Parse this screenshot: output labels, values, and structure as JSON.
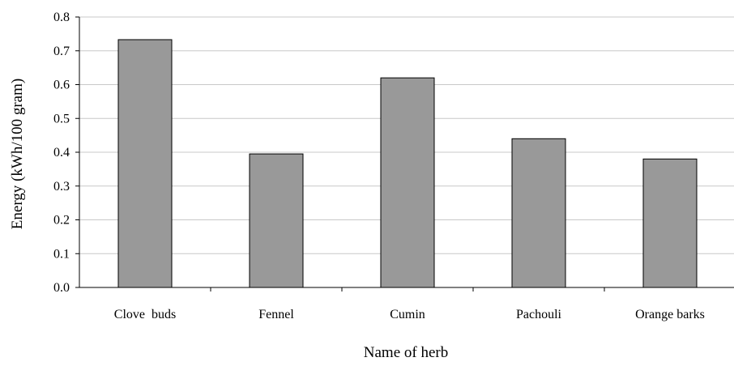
{
  "chart_data": {
    "type": "bar",
    "categories": [
      "Clove  buds",
      "Fennel",
      "Cumin",
      "Pachouli",
      "Orange barks"
    ],
    "values": [
      0.733,
      0.395,
      0.62,
      0.44,
      0.38
    ],
    "xlabel": "Name of herb",
    "ylabel": "Energy (kWh/100 gram)",
    "ylim": [
      0,
      0.8
    ],
    "yticks": [
      "0.0",
      "0.1",
      "0.2",
      "0.3",
      "0.4",
      "0.5",
      "0.6",
      "0.7",
      "0.8"
    ],
    "grid": true,
    "legend": "none",
    "bar_color": "#999999",
    "gridline_color": "#c8c8c8"
  }
}
